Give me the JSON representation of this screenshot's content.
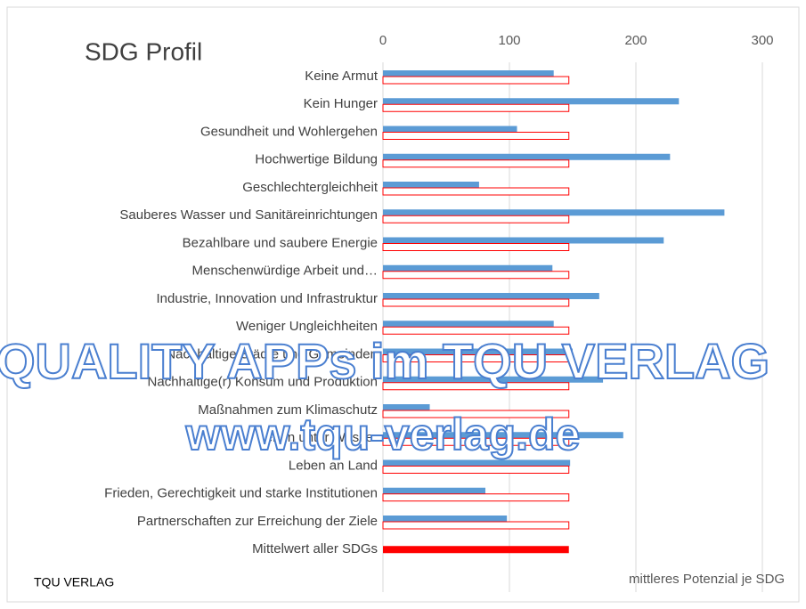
{
  "chart_data": {
    "type": "hbar",
    "title": "SDG Profil",
    "x_label": "mittleres Potenzial je SDG",
    "annotations": [
      "TQU VERLAG",
      "QUALITY APPs im TQU VERLAG",
      "www.tqu-verlag.de"
    ],
    "categories": [
      "Keine Armut",
      "Kein Hunger",
      "Gesundheit und Wohlergehen",
      "Hochwertige Bildung",
      "Geschlechtergleichheit",
      "Sauberes Wasser und Sanitäreinrichtungen",
      "Bezahlbare und saubere Energie",
      "Menschenwürdige Arbeit und…",
      "Industrie, Innovation und Infrastruktur",
      "Weniger Ungleichheiten",
      "Nachhaltige Städte und Gemeinden",
      "Nachhaltige(r) Konsum und Produktion",
      "Maßnahmen zum Klimaschutz",
      "Leben unter Wasser",
      "Leben an Land",
      "Frieden, Gerechtigkeit und starke Institutionen",
      "Partnerschaften zur Erreichung der Ziele",
      "Mittelwert aller SDGs"
    ],
    "series": [
      {
        "color": "#5b9bd5",
        "style": "solid",
        "values": [
          135,
          234,
          106,
          227,
          76,
          270,
          222,
          134,
          171,
          135,
          150,
          174,
          37,
          190,
          148,
          81,
          98,
          null
        ]
      },
      {
        "color": "#ff0000",
        "style": "outline",
        "values": [
          147,
          147,
          147,
          147,
          147,
          147,
          147,
          147,
          147,
          147,
          147,
          147,
          147,
          147,
          147,
          147,
          147,
          null
        ]
      },
      {
        "color": "#ff0000",
        "style": "solid",
        "values": [
          null,
          null,
          null,
          null,
          null,
          null,
          null,
          null,
          null,
          null,
          null,
          null,
          null,
          null,
          null,
          null,
          null,
          147
        ]
      }
    ],
    "xlim": [
      0,
      300
    ],
    "xticks": [
      0,
      100,
      200,
      300
    ],
    "grid": true
  }
}
